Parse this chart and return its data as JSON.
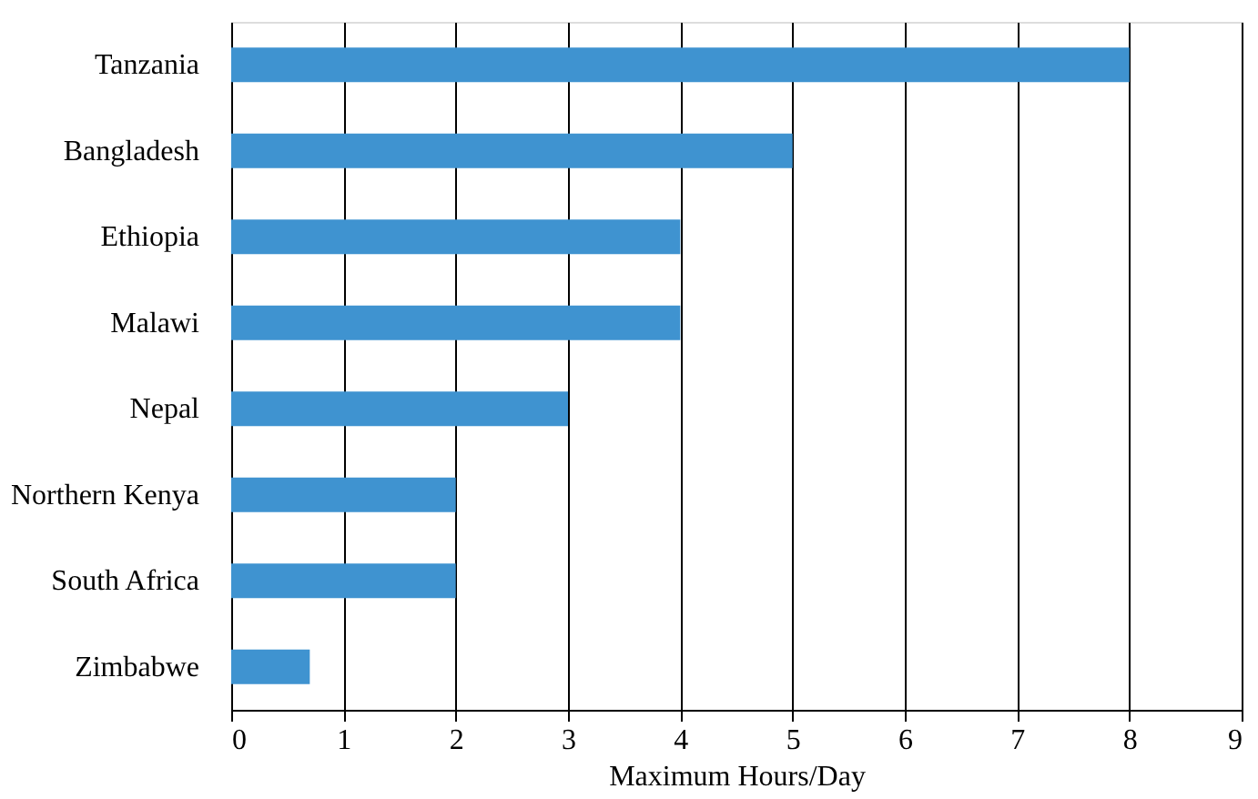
{
  "chart_data": {
    "type": "bar",
    "orientation": "horizontal",
    "xlabel": "Maximum Hours/Day",
    "categories": [
      "Tanzania",
      "Bangladesh",
      "Ethiopia",
      "Malawi",
      "Nepal",
      "Northern Kenya",
      "South Africa",
      "Zimbabwe"
    ],
    "values": [
      8,
      5,
      4,
      4,
      3,
      2,
      2,
      0.7
    ],
    "color": "#3f93d0",
    "xlim": [
      0,
      9
    ],
    "xticks": [
      0,
      1,
      2,
      3,
      4,
      5,
      6,
      7,
      8,
      9
    ],
    "grid": "x"
  }
}
